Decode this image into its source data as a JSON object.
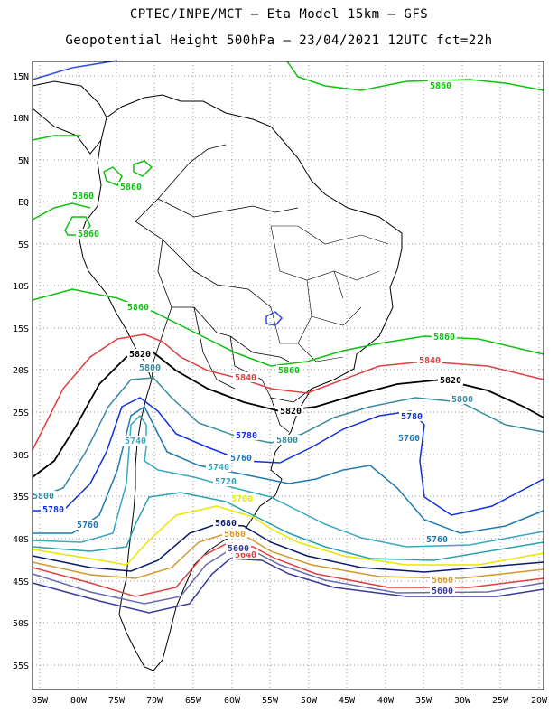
{
  "title": {
    "line1": "CPTEC/INPE/MCT –  Eta Model 15km – GFS",
    "line2": "Geopotential Height 500hPa – 23/04/2021 12UTC fct=22h"
  },
  "map": {
    "lon_labels": [
      "85W",
      "80W",
      "75W",
      "70W",
      "65W",
      "60W",
      "55W",
      "50W",
      "45W",
      "40W",
      "35W",
      "30W",
      "25W",
      "20W"
    ],
    "lat_labels": [
      "15N",
      "10N",
      "5N",
      "EQ",
      "5S",
      "10S",
      "15S",
      "20S",
      "25S",
      "30S",
      "35S",
      "40S",
      "45S",
      "50S",
      "55S"
    ],
    "grid": "dotted",
    "extent": {
      "lon_min": -86,
      "lon_max": -19.5,
      "lat_min": -58,
      "lat_max": 16
    }
  },
  "contour_colors": {
    "5580": "#0a1a6a",
    "5600": "#3a3a9a",
    "5620": "#6a6ab0",
    "5640": "#e04040",
    "5660": "#d09a30",
    "5700": "#e8e800",
    "5720": "#2aa0b0",
    "5740": "#3aa8c0",
    "5760": "#1e7ab0",
    "5780": "#1030e0",
    "5800": "#3a8aa0",
    "5820": "#000000",
    "5840": "#e04040",
    "5860": "#10c010",
    "5880": "#3050e0"
  },
  "contour_labels": [
    {
      "text": "5860",
      "color": "#10c010"
    },
    {
      "text": "5860",
      "color": "#10c010"
    },
    {
      "text": "5860",
      "color": "#10c010"
    },
    {
      "text": "5860",
      "color": "#10c010"
    },
    {
      "text": "5860",
      "color": "#10c010"
    },
    {
      "text": "5860",
      "color": "#10c010"
    },
    {
      "text": "5860",
      "color": "#10c010"
    },
    {
      "text": "5840",
      "color": "#e04040"
    },
    {
      "text": "5840",
      "color": "#e04040"
    },
    {
      "text": "5820",
      "color": "#000000"
    },
    {
      "text": "5820",
      "color": "#000000"
    },
    {
      "text": "5820",
      "color": "#000000"
    },
    {
      "text": "5800",
      "color": "#3a8aa0"
    },
    {
      "text": "5800",
      "color": "#3a8aa0"
    },
    {
      "text": "5800",
      "color": "#3a8aa0"
    },
    {
      "text": "5800",
      "color": "#3a8aa0"
    },
    {
      "text": "5780",
      "color": "#1030e0"
    },
    {
      "text": "5780",
      "color": "#1030e0"
    },
    {
      "text": "5780",
      "color": "#1030e0"
    },
    {
      "text": "5760",
      "color": "#1e7ab0"
    },
    {
      "text": "5760",
      "color": "#1e7ab0"
    },
    {
      "text": "5760",
      "color": "#1e7ab0"
    },
    {
      "text": "5760",
      "color": "#1e7ab0"
    },
    {
      "text": "5740",
      "color": "#3aa8c0"
    },
    {
      "text": "5740",
      "color": "#3aa8c0"
    },
    {
      "text": "5720",
      "color": "#2aa0b0"
    },
    {
      "text": "5700",
      "color": "#e8e800"
    },
    {
      "text": "5680",
      "color": "#0a1a6a"
    },
    {
      "text": "5660",
      "color": "#d09a30"
    },
    {
      "text": "5660",
      "color": "#d09a30"
    },
    {
      "text": "5640",
      "color": "#e04040"
    },
    {
      "text": "5600",
      "color": "#3a3a9a"
    },
    {
      "text": "5600",
      "color": "#3a3a9a"
    }
  ]
}
